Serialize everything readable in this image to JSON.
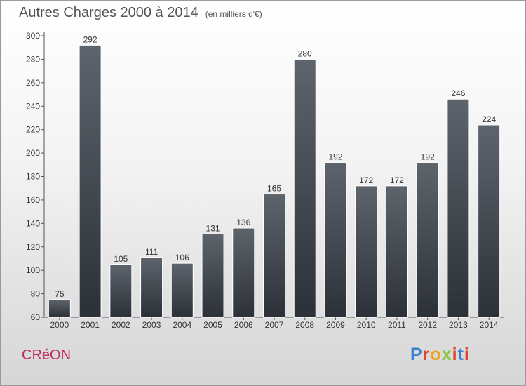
{
  "header": {
    "title": "Autres Charges 2000 à 2014",
    "unit": "(en milliers d'€)"
  },
  "footer": {
    "commune": "CRéON",
    "logo": {
      "text": "Proxiti",
      "colors": [
        "#3a7fd0",
        "#e2452f",
        "#f0a21a",
        "#8cc63e",
        "#e2452f",
        "#3a7fd0",
        "#e2452f"
      ]
    }
  },
  "chart_data": {
    "type": "bar",
    "title": "Autres Charges 2000 à 2014",
    "subtitle": "(en milliers d'€)",
    "categories": [
      "2000",
      "2001",
      "2002",
      "2003",
      "2004",
      "2005",
      "2006",
      "2007",
      "2008",
      "2009",
      "2010",
      "2011",
      "2012",
      "2013",
      "2014"
    ],
    "values": [
      75,
      292,
      105,
      111,
      106,
      131,
      136,
      165,
      280,
      192,
      172,
      172,
      192,
      246,
      224
    ],
    "ylim": [
      60,
      300
    ],
    "yticks": [
      60,
      80,
      100,
      120,
      140,
      160,
      180,
      200,
      220,
      240,
      260,
      280,
      300
    ],
    "grid": false,
    "bar_color": "#3c4148"
  }
}
